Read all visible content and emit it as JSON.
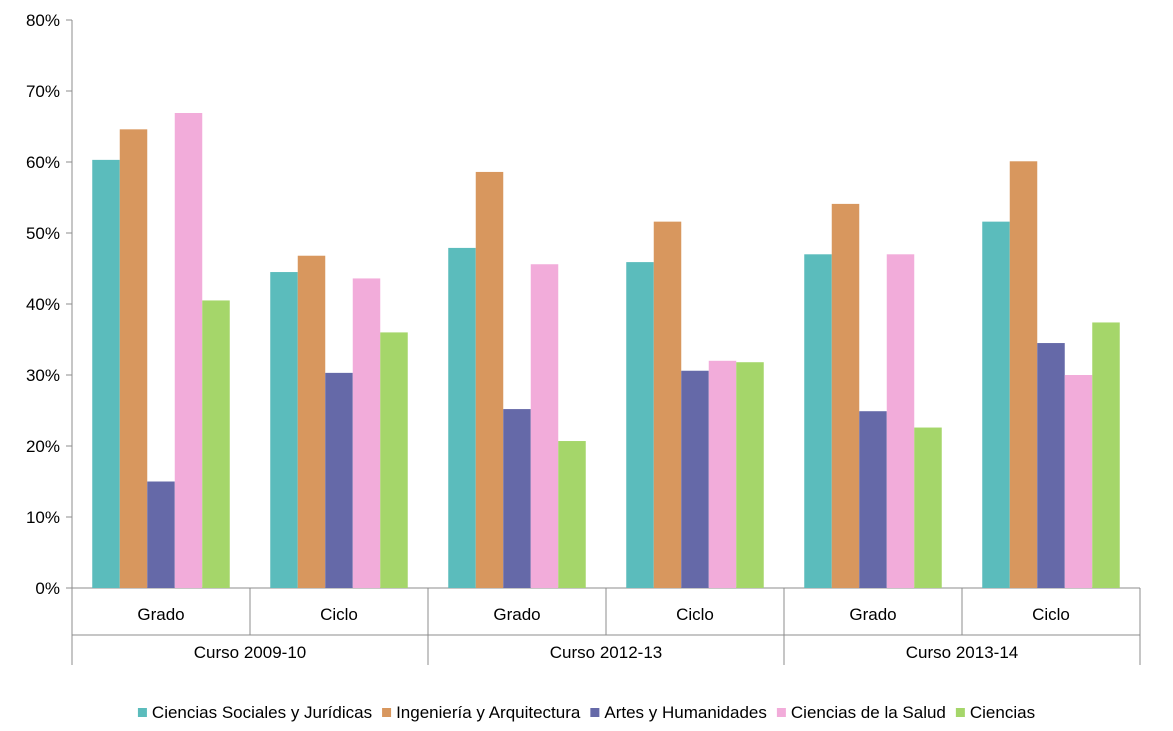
{
  "chart_data": {
    "type": "bar",
    "groups": [
      {
        "label": "Curso 2009-10",
        "categories": [
          "Grado",
          "Ciclo"
        ]
      },
      {
        "label": "Curso 2012-13",
        "categories": [
          "Grado",
          "Ciclo"
        ]
      },
      {
        "label": "Curso 2013-14",
        "categories": [
          "Grado",
          "Ciclo"
        ]
      }
    ],
    "categories": [
      "Grado",
      "Ciclo",
      "Grado",
      "Ciclo",
      "Grado",
      "Ciclo"
    ],
    "series": [
      {
        "name": "Ciencias Sociales y Jurídicas",
        "color": "#5BBCBC",
        "values": [
          60.3,
          44.5,
          47.9,
          45.9,
          47.0,
          51.6
        ]
      },
      {
        "name": "Ingeniería y Arquitectura",
        "color": "#D8975E",
        "values": [
          64.6,
          46.8,
          58.6,
          51.6,
          54.1,
          60.1
        ]
      },
      {
        "name": "Artes y Humanidades",
        "color": "#6569A8",
        "values": [
          15.0,
          30.3,
          25.2,
          30.6,
          24.9,
          34.5
        ]
      },
      {
        "name": "Ciencias de la Salud",
        "color": "#F2ACDA",
        "values": [
          66.9,
          43.6,
          45.6,
          32.0,
          47.0,
          30.0
        ]
      },
      {
        "name": "Ciencias",
        "color": "#A5D66A",
        "values": [
          40.5,
          36.0,
          20.7,
          31.8,
          22.6,
          37.4
        ]
      }
    ],
    "y_tick_labels": [
      "0%",
      "10%",
      "20%",
      "30%",
      "40%",
      "50%",
      "60%",
      "70%",
      "80%"
    ],
    "ylim": [
      0,
      80
    ],
    "y_unit": "%",
    "grid": false,
    "legend_position": "bottom"
  }
}
